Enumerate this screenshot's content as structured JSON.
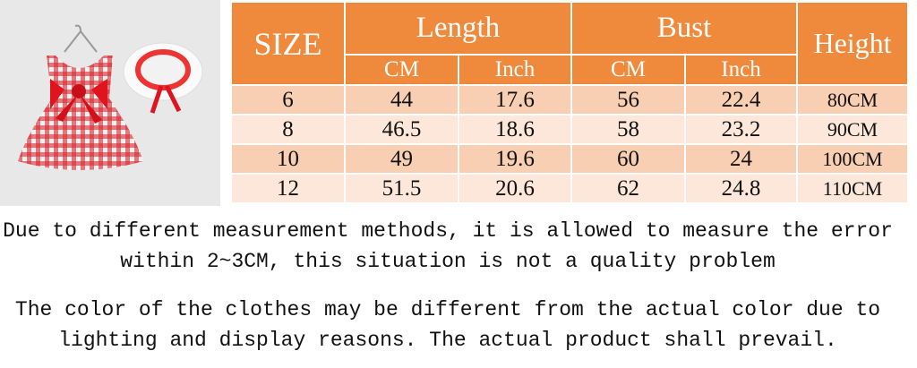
{
  "table": {
    "header": {
      "size": "SIZE",
      "length": "Length",
      "bust": "Bust",
      "height": "Height",
      "units": [
        "CM",
        "Inch",
        "CM",
        "Inch"
      ]
    },
    "rows": [
      [
        "6",
        "44",
        "17.6",
        "56",
        "22.4",
        "80CM"
      ],
      [
        "8",
        "46.5",
        "18.6",
        "58",
        "23.2",
        "90CM"
      ],
      [
        "10",
        "49",
        "19.6",
        "60",
        "24",
        "100CM"
      ],
      [
        "12",
        "51.5",
        "20.6",
        "62",
        "24.8",
        "110CM"
      ]
    ]
  },
  "notes": [
    [
      "Due to different measurement methods, it is allowed to measure the error",
      "within 2~3CM, this situation is not a quality problem"
    ],
    [
      "The color of the clothes may be different from the actual color due to",
      "lighting and display reasons. The actual product shall prevail."
    ]
  ]
}
